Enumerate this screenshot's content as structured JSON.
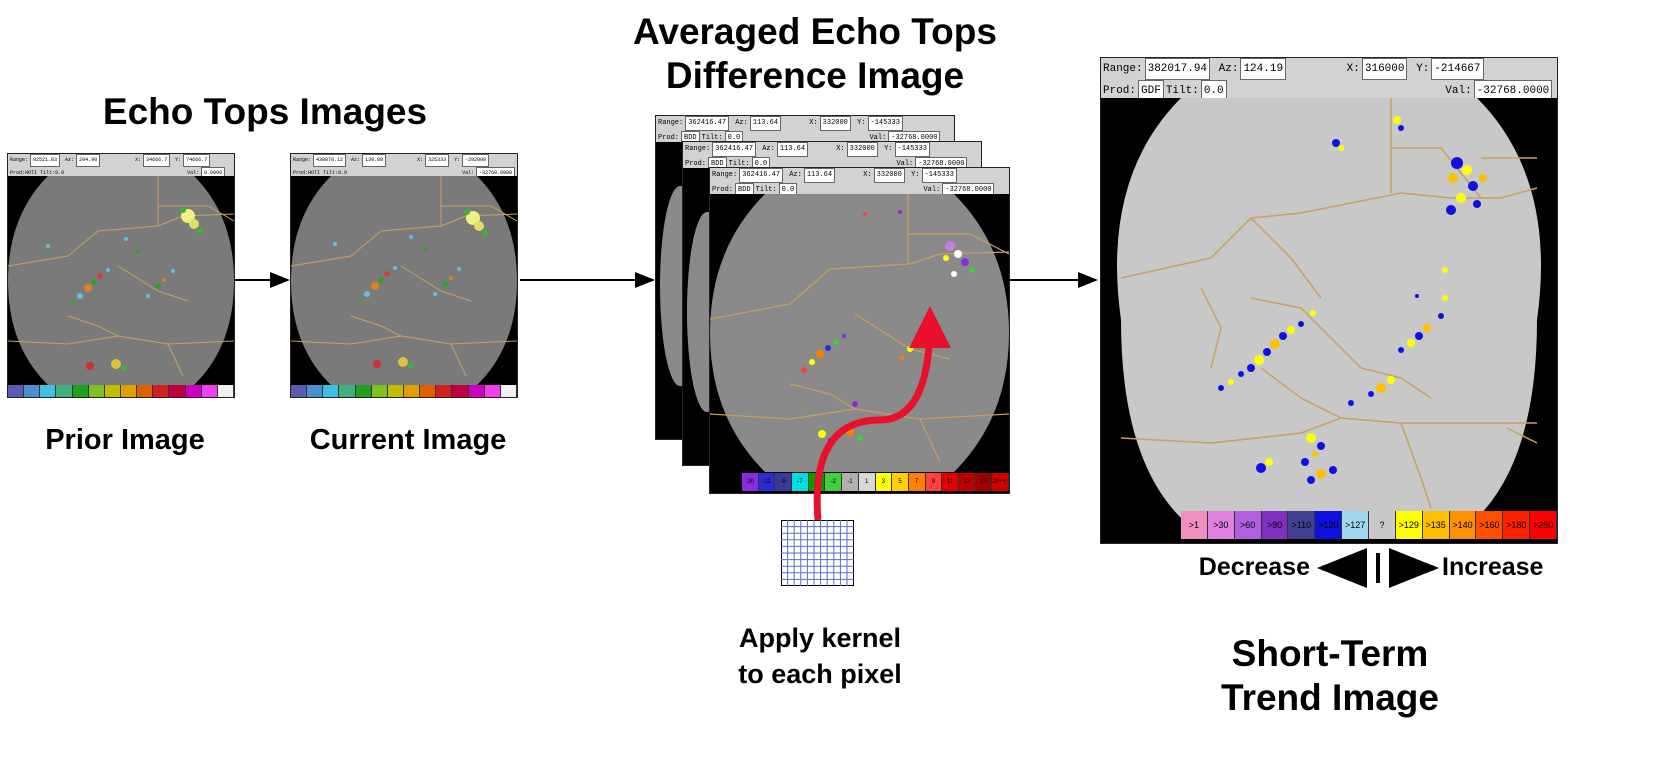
{
  "headings": {
    "echo_tops": "Echo Tops Images",
    "averaged": [
      "Averaged Echo Tops",
      "Difference Image"
    ],
    "short_term": [
      "Short-Term",
      "Trend Image"
    ]
  },
  "captions": {
    "prior": "Prior Image",
    "current": "Current Image",
    "kernel": [
      "Apply kernel",
      "to each pixel"
    ],
    "decrease": "Decrease",
    "increase": "Increase"
  },
  "prior_panel": {
    "range": "92521.83",
    "az": "204.90",
    "x": "34666.7",
    "y": "74666.7",
    "prod": "HOTI",
    "tilt": "0.0",
    "val": "0.0000",
    "range_label": "Range:",
    "az_label": "Az:",
    "x_label": "X:",
    "y_label": "Y:",
    "prod_label": "Prod:",
    "tilt_label": "Tilt:",
    "val_label": "Val:"
  },
  "current_panel": {
    "range": "430878.12",
    "az": "130.88",
    "x": "325333",
    "y": "-292000",
    "prod": "HOTI",
    "tilt": "0.0",
    "val": "-32768.0000",
    "range_label": "Range:",
    "az_label": "Az:",
    "x_label": "X:",
    "y_label": "Y:",
    "prod_label": "Prod:",
    "tilt_label": "Tilt:",
    "val_label": "Val:"
  },
  "diff_panel": {
    "range": "362416.47",
    "az": "113.64",
    "x": "332000",
    "y": "-145333",
    "prod": "BDD",
    "tilt": "0.0",
    "val": "-32768.0000",
    "range_label": "Range:",
    "az_label": "Az:",
    "x_label": "X:",
    "y_label": "Y:",
    "prod_label": "Prod:",
    "tilt_label": "Tilt:",
    "val_label": "Val:"
  },
  "trend_panel": {
    "range": "382017.94",
    "az": "124.19",
    "x": "316000",
    "y": "-214667",
    "prod": "GDF",
    "tilt": "0.0",
    "val": "-32768.0000",
    "range_label": "Range:",
    "az_label": "Az:",
    "x_label": "X:",
    "y_label": "Y:",
    "prod_label": "Prod:",
    "tilt_label": "Tilt:",
    "val_label": "Val:"
  },
  "diff_legend": [
    {
      "label": "-30",
      "color": "#8a2be2"
    },
    {
      "label": "-11",
      "color": "#2b2bd6"
    },
    {
      "label": "-8",
      "color": "#3a3a9a"
    },
    {
      "label": "-7",
      "color": "#00e0e0"
    },
    {
      "label": "-3",
      "color": "#00a000"
    },
    {
      "label": "-2",
      "color": "#40d040"
    },
    {
      "label": "-1",
      "color": "#b0b0b0"
    },
    {
      "label": "1",
      "color": "#d8d8d8"
    },
    {
      "label": "3",
      "color": "#ffff00"
    },
    {
      "label": "5",
      "color": "#ffd000"
    },
    {
      "label": "7",
      "color": "#ff8000"
    },
    {
      "label": "9",
      "color": "#ff4040"
    },
    {
      "label": "11",
      "color": "#e00000"
    },
    {
      "label": "13",
      "color": "#c00000"
    },
    {
      "label": "15",
      "color": "#a00000"
    },
    {
      "label": "20++ 29",
      "color": "#d00000"
    }
  ],
  "trend_legend": [
    {
      "label": ">1",
      "color": "#f090c0"
    },
    {
      "label": ">30",
      "color": "#e080e0"
    },
    {
      "label": ">60",
      "color": "#b060e0"
    },
    {
      "label": ">90",
      "color": "#8030c0"
    },
    {
      "label": ">110",
      "color": "#404090"
    },
    {
      "label": ">120",
      "color": "#1010e0"
    },
    {
      "label": ">127",
      "color": "#a0d8f0"
    },
    {
      "label": "?",
      "color": "#c8c8c8"
    },
    {
      "label": ">129",
      "color": "#ffff00"
    },
    {
      "label": ">135",
      "color": "#ffc000"
    },
    {
      "label": ">140",
      "color": "#ff9000"
    },
    {
      "label": ">160",
      "color": "#ff5000"
    },
    {
      "label": ">180",
      "color": "#ff2000"
    },
    {
      "label": ">250",
      "color": "#ff0000"
    }
  ],
  "small_legend_colors": [
    "#5a5ab0",
    "#4a90d0",
    "#40c0e0",
    "#40b080",
    "#20a020",
    "#80c020",
    "#c0c000",
    "#e0a000",
    "#e06000",
    "#d02020",
    "#c00040",
    "#d000c0",
    "#f040f0",
    "#f0f0f0"
  ]
}
